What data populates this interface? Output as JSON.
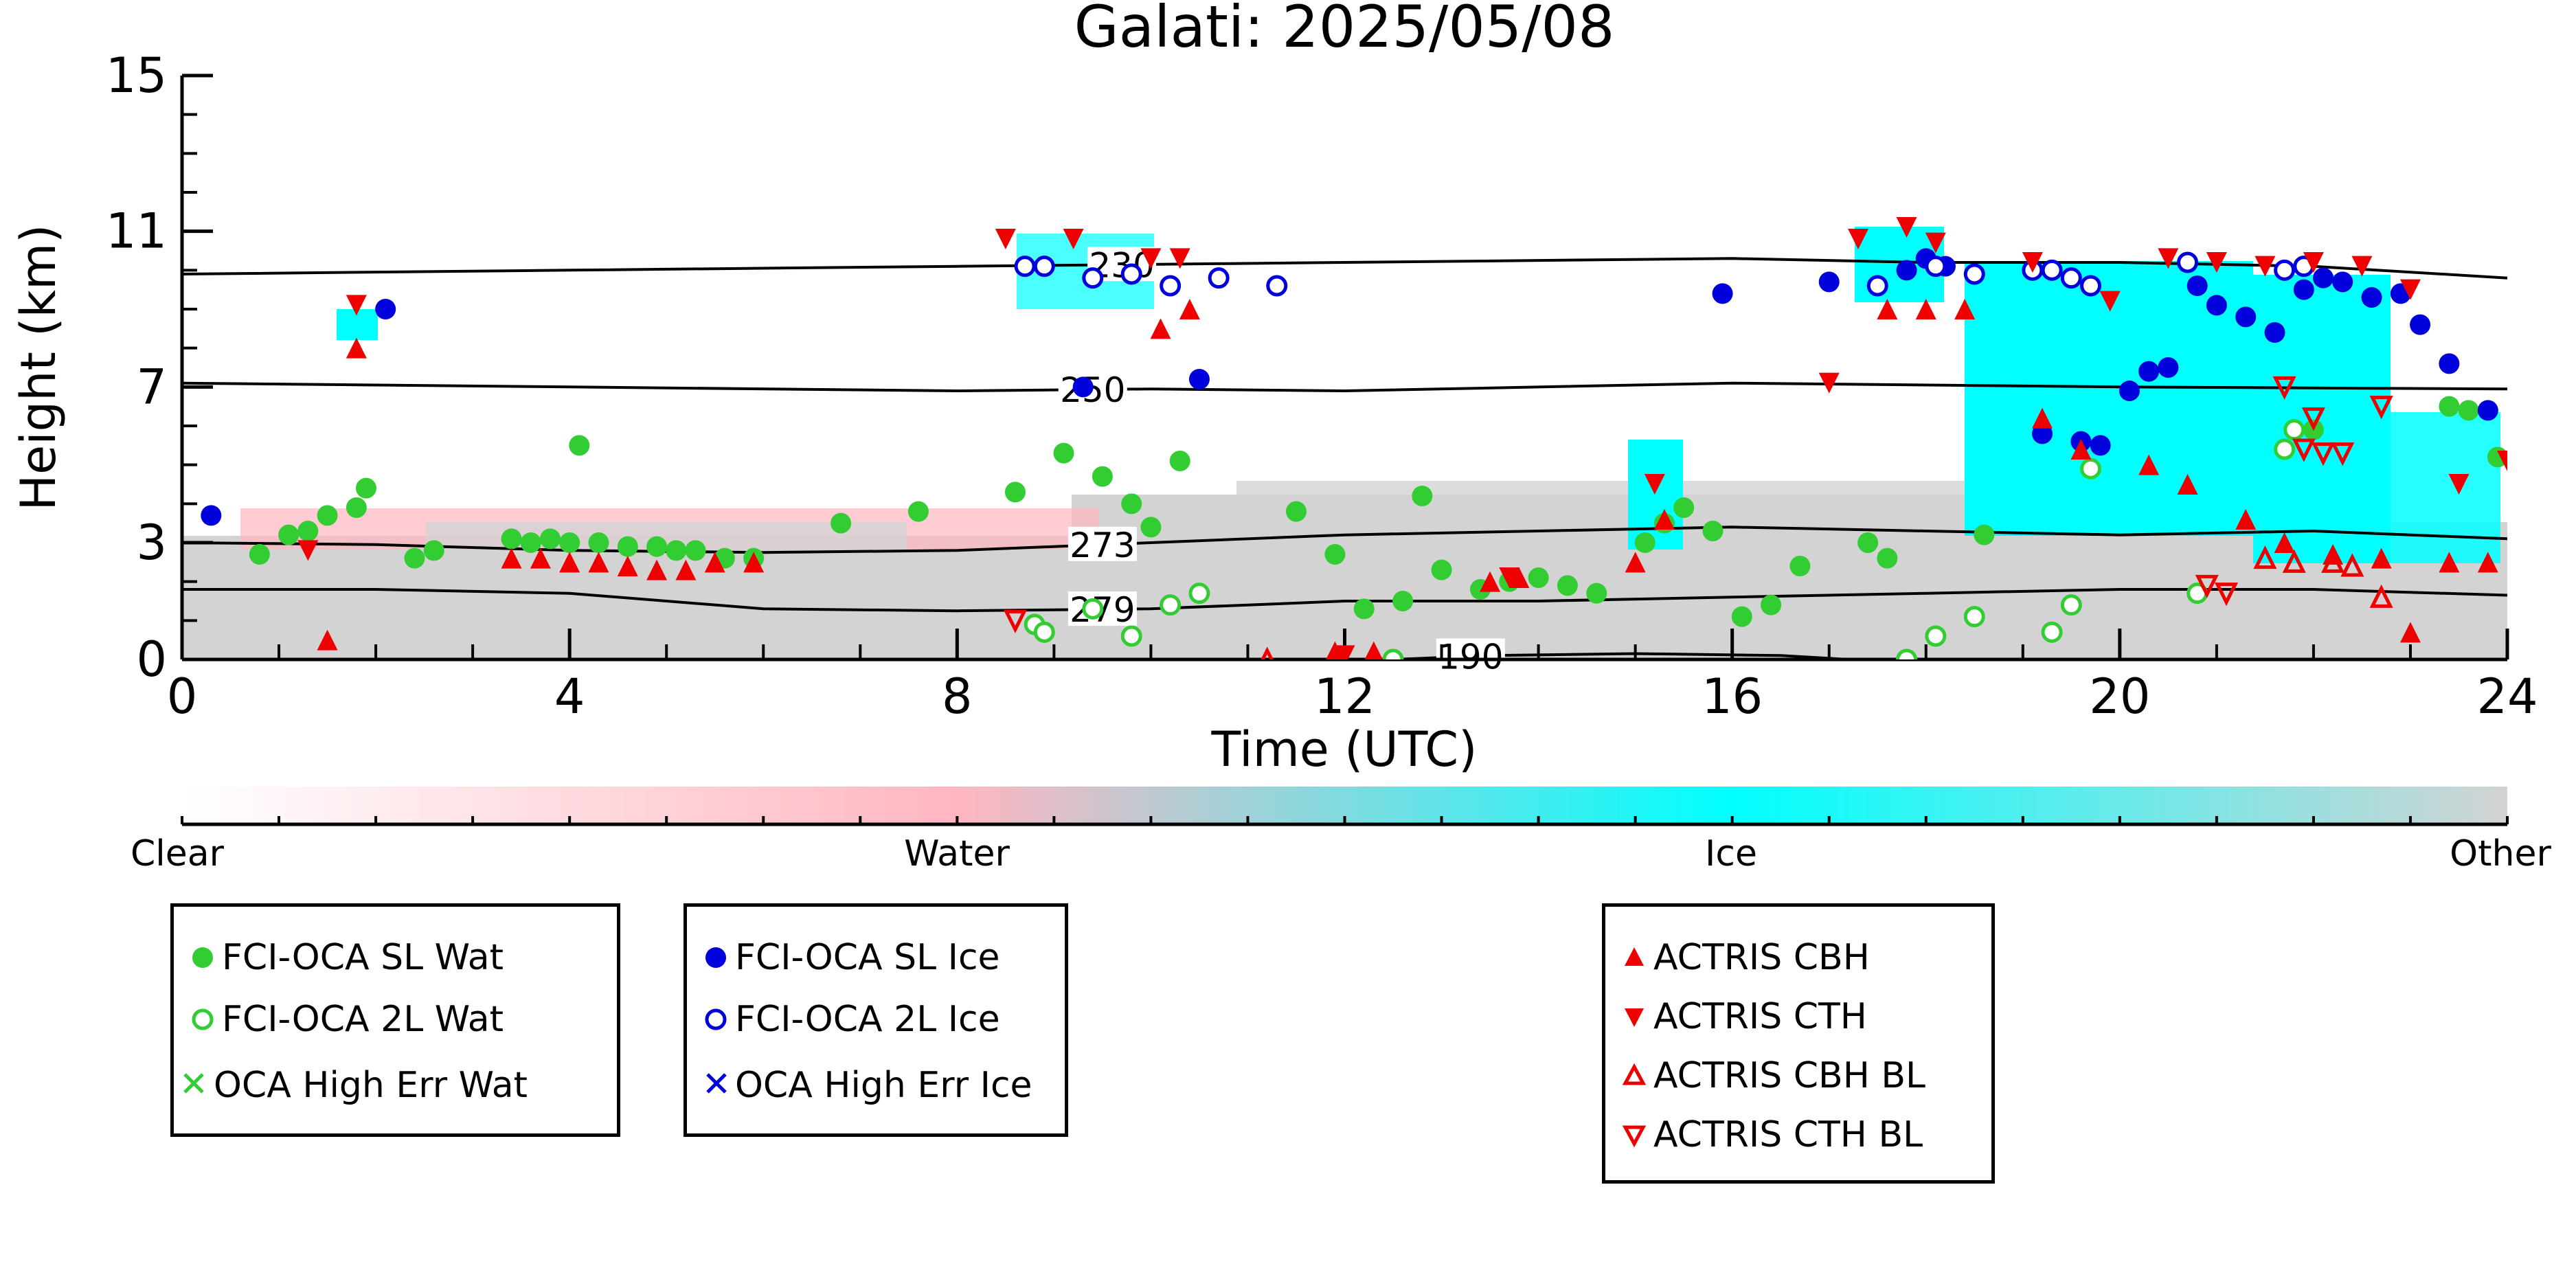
{
  "chart_data": {
    "type": "scatter",
    "title": "Galati: 2025/05/08",
    "xlabel": "Time (UTC)",
    "ylabel": "Height (km)",
    "xlim": [
      0,
      24
    ],
    "ylim": [
      0,
      15
    ],
    "xticks": [
      "0",
      "4",
      "8",
      "12",
      "16",
      "20",
      "24"
    ],
    "yticks": [
      "0",
      "3",
      "7",
      "11",
      "15"
    ],
    "colorbar": {
      "labels": [
        "Clear",
        "Water",
        "Ice",
        "Other"
      ],
      "colors": [
        "#ffffff",
        "#ffb6c1",
        "#00ffff",
        "#d3d3d3"
      ]
    },
    "contours": [
      {
        "label": "230",
        "label_x": 9.7,
        "points": [
          [
            0,
            9.9
          ],
          [
            4,
            10.0
          ],
          [
            8,
            10.1
          ],
          [
            12,
            10.2
          ],
          [
            16,
            10.3
          ],
          [
            18,
            10.2
          ],
          [
            20,
            10.2
          ],
          [
            22,
            10.1
          ],
          [
            24,
            9.8
          ]
        ]
      },
      {
        "label": "250",
        "label_x": 9.4,
        "points": [
          [
            0,
            7.1
          ],
          [
            4,
            7.0
          ],
          [
            8,
            6.9
          ],
          [
            10,
            6.95
          ],
          [
            12,
            6.9
          ],
          [
            16,
            7.1
          ],
          [
            20,
            7.0
          ],
          [
            24,
            6.95
          ]
        ]
      },
      {
        "label": "273",
        "label_x": 9.5,
        "points": [
          [
            0,
            3.0
          ],
          [
            2,
            2.95
          ],
          [
            4,
            2.8
          ],
          [
            6,
            2.75
          ],
          [
            8,
            2.8
          ],
          [
            10,
            3.0
          ],
          [
            12,
            3.2
          ],
          [
            14,
            3.3
          ],
          [
            16,
            3.4
          ],
          [
            18,
            3.3
          ],
          [
            20,
            3.2
          ],
          [
            22,
            3.3
          ],
          [
            24,
            3.1
          ]
        ]
      },
      {
        "label": "279",
        "label_x": 9.5,
        "points": [
          [
            0,
            1.8
          ],
          [
            2,
            1.8
          ],
          [
            4,
            1.7
          ],
          [
            6,
            1.3
          ],
          [
            8,
            1.25
          ],
          [
            10,
            1.3
          ],
          [
            11,
            1.4
          ],
          [
            12,
            1.5
          ],
          [
            14,
            1.5
          ],
          [
            16,
            1.6
          ],
          [
            18,
            1.7
          ],
          [
            20,
            1.8
          ],
          [
            22,
            1.8
          ],
          [
            24,
            1.65
          ]
        ]
      },
      {
        "label": "190",
        "label_x": 13.3,
        "points": [
          [
            12.5,
            0.0
          ],
          [
            13.5,
            0.1
          ],
          [
            15,
            0.15
          ],
          [
            16.5,
            0.1
          ],
          [
            17.2,
            0.0
          ]
        ]
      }
    ],
    "series": [
      {
        "name": "FCI-OCA SL Wat",
        "color": "#32cd32",
        "marker": "filled-circle",
        "x": [
          0.8,
          1.1,
          1.3,
          1.5,
          1.8,
          1.9,
          2.4,
          2.6,
          3.4,
          3.6,
          3.8,
          4.0,
          4.1,
          4.3,
          4.6,
          4.9,
          5.1,
          5.3,
          5.6,
          5.9,
          6.8,
          7.6,
          8.6,
          9.1,
          9.5,
          9.8,
          10.0,
          10.3,
          11.5,
          11.9,
          12.2,
          12.6,
          12.8,
          13.0,
          13.4,
          13.7,
          14.0,
          14.3,
          14.6,
          15.1,
          15.3,
          15.5,
          15.8,
          16.1,
          16.4,
          16.7,
          17.4,
          17.6,
          18.6,
          22.0,
          23.4,
          23.6,
          23.9
        ],
        "y": [
          2.7,
          3.2,
          3.3,
          3.7,
          3.9,
          4.4,
          2.6,
          2.8,
          3.1,
          3.0,
          3.1,
          3.0,
          5.5,
          3.0,
          2.9,
          2.9,
          2.8,
          2.8,
          2.6,
          2.6,
          3.5,
          3.8,
          4.3,
          5.3,
          4.7,
          4.0,
          3.4,
          5.1,
          3.8,
          2.7,
          1.3,
          1.5,
          4.2,
          2.3,
          1.8,
          2.0,
          2.1,
          1.9,
          1.7,
          3.0,
          3.5,
          3.9,
          3.3,
          1.1,
          1.4,
          2.4,
          3.0,
          2.6,
          3.2,
          5.9,
          6.5,
          6.4,
          5.2
        ]
      },
      {
        "name": "FCI-OCA 2L Wat",
        "color": "#32cd32",
        "marker": "open-circle",
        "x": [
          8.8,
          8.9,
          9.4,
          9.8,
          10.2,
          10.5,
          12.5,
          17.8,
          18.1,
          18.5,
          19.3,
          19.5,
          19.7,
          20.8,
          21.7,
          21.8
        ],
        "y": [
          0.9,
          0.7,
          1.3,
          0.6,
          1.4,
          1.7,
          0.0,
          0.0,
          0.6,
          1.1,
          0.7,
          1.4,
          4.9,
          1.7,
          5.4,
          5.9
        ]
      },
      {
        "name": "OCA High Err Wat",
        "color": "#32cd32",
        "marker": "x",
        "x": [],
        "y": []
      },
      {
        "name": "FCI-OCA SL Ice",
        "color": "#0000dd",
        "marker": "filled-circle",
        "x": [
          0.3,
          2.1,
          9.3,
          10.5,
          15.9,
          17.0,
          17.8,
          18.0,
          18.2,
          19.2,
          19.6,
          19.8,
          20.1,
          20.3,
          20.5,
          20.8,
          21.0,
          21.3,
          21.6,
          21.9,
          22.1,
          22.3,
          22.6,
          22.9,
          23.1,
          23.4,
          23.8
        ],
        "y": [
          3.7,
          9.0,
          7.0,
          7.2,
          9.4,
          9.7,
          10.0,
          10.3,
          10.1,
          5.8,
          5.6,
          5.5,
          6.9,
          7.4,
          7.5,
          9.6,
          9.1,
          8.8,
          8.4,
          9.5,
          9.8,
          9.7,
          9.3,
          9.4,
          8.6,
          7.6,
          6.4
        ]
      },
      {
        "name": "FCI-OCA 2L Ice",
        "color": "#0000dd",
        "marker": "open-circle",
        "x": [
          8.7,
          8.9,
          9.4,
          9.8,
          10.2,
          10.7,
          11.3,
          17.5,
          18.1,
          18.5,
          19.1,
          19.3,
          19.5,
          19.7,
          20.7,
          21.7,
          21.9
        ],
        "y": [
          10.1,
          10.1,
          9.8,
          9.9,
          9.6,
          9.8,
          9.6,
          9.6,
          10.1,
          9.9,
          10.0,
          10.0,
          9.8,
          9.6,
          10.2,
          10.0,
          10.1
        ]
      },
      {
        "name": "OCA High Err Ice",
        "color": "#0000dd",
        "marker": "x",
        "x": [],
        "y": []
      },
      {
        "name": "ACTRIS CBH",
        "color": "#ee0000",
        "marker": "filled-triangle-up",
        "x": [
          1.5,
          1.8,
          3.4,
          3.7,
          4.0,
          4.3,
          4.6,
          4.9,
          5.2,
          5.5,
          5.9,
          10.1,
          10.4,
          11.9,
          12.3,
          13.5,
          13.8,
          15.0,
          15.3,
          17.6,
          18.0,
          18.4,
          19.2,
          19.6,
          20.3,
          20.7,
          21.3,
          21.7,
          22.2,
          22.7,
          23.0,
          23.4,
          23.8
        ],
        "y": [
          0.5,
          8.0,
          2.6,
          2.6,
          2.5,
          2.5,
          2.4,
          2.3,
          2.3,
          2.5,
          2.5,
          8.5,
          9.0,
          0.2,
          0.2,
          2.0,
          2.1,
          2.5,
          3.6,
          9.0,
          9.0,
          9.0,
          6.2,
          5.4,
          5.0,
          4.5,
          3.6,
          3.0,
          2.7,
          2.6,
          0.7,
          2.5,
          2.5
        ]
      },
      {
        "name": "ACTRIS CTH",
        "color": "#ee0000",
        "marker": "filled-triangle-down",
        "x": [
          1.3,
          1.8,
          8.5,
          9.2,
          10.0,
          10.3,
          12.0,
          13.7,
          15.2,
          17.0,
          17.3,
          17.8,
          18.1,
          19.1,
          19.9,
          20.5,
          21.0,
          21.5,
          22.0,
          22.5,
          23.0,
          23.5,
          24.0
        ],
        "y": [
          2.8,
          9.1,
          10.8,
          10.8,
          10.3,
          10.3,
          0.1,
          2.1,
          4.5,
          7.1,
          10.8,
          11.1,
          10.7,
          10.2,
          9.2,
          10.3,
          10.2,
          10.1,
          10.2,
          10.1,
          9.5,
          4.5,
          5.1
        ]
      },
      {
        "name": "ACTRIS CBH BL",
        "color": "#ee0000",
        "marker": "open-triangle-up",
        "x": [
          11.2,
          21.5,
          21.8,
          22.2,
          22.4,
          22.7
        ],
        "y": [
          0.0,
          2.6,
          2.5,
          2.5,
          2.4,
          1.6
        ]
      },
      {
        "name": "ACTRIS CTH BL",
        "color": "#ee0000",
        "marker": "open-triangle-down",
        "x": [
          8.6,
          20.9,
          21.1,
          21.7,
          21.9,
          22.0,
          22.1,
          22.3,
          22.7
        ],
        "y": [
          1.0,
          1.9,
          1.7,
          7.0,
          5.4,
          6.2,
          5.3,
          5.3,
          6.5
        ]
      }
    ],
    "legend_groups": [
      [
        "FCI-OCA SL Wat",
        "FCI-OCA 2L Wat",
        "OCA High Err Wat"
      ],
      [
        "FCI-OCA SL Ice",
        "FCI-OCA 2L Ice",
        "OCA High Err Ice"
      ],
      [
        "ACTRIS CBH",
        "ACTRIS CTH",
        "ACTRIS CBH BL",
        "ACTRIS CTH BL"
      ]
    ],
    "grid": false,
    "legend_placement": "bottom"
  }
}
